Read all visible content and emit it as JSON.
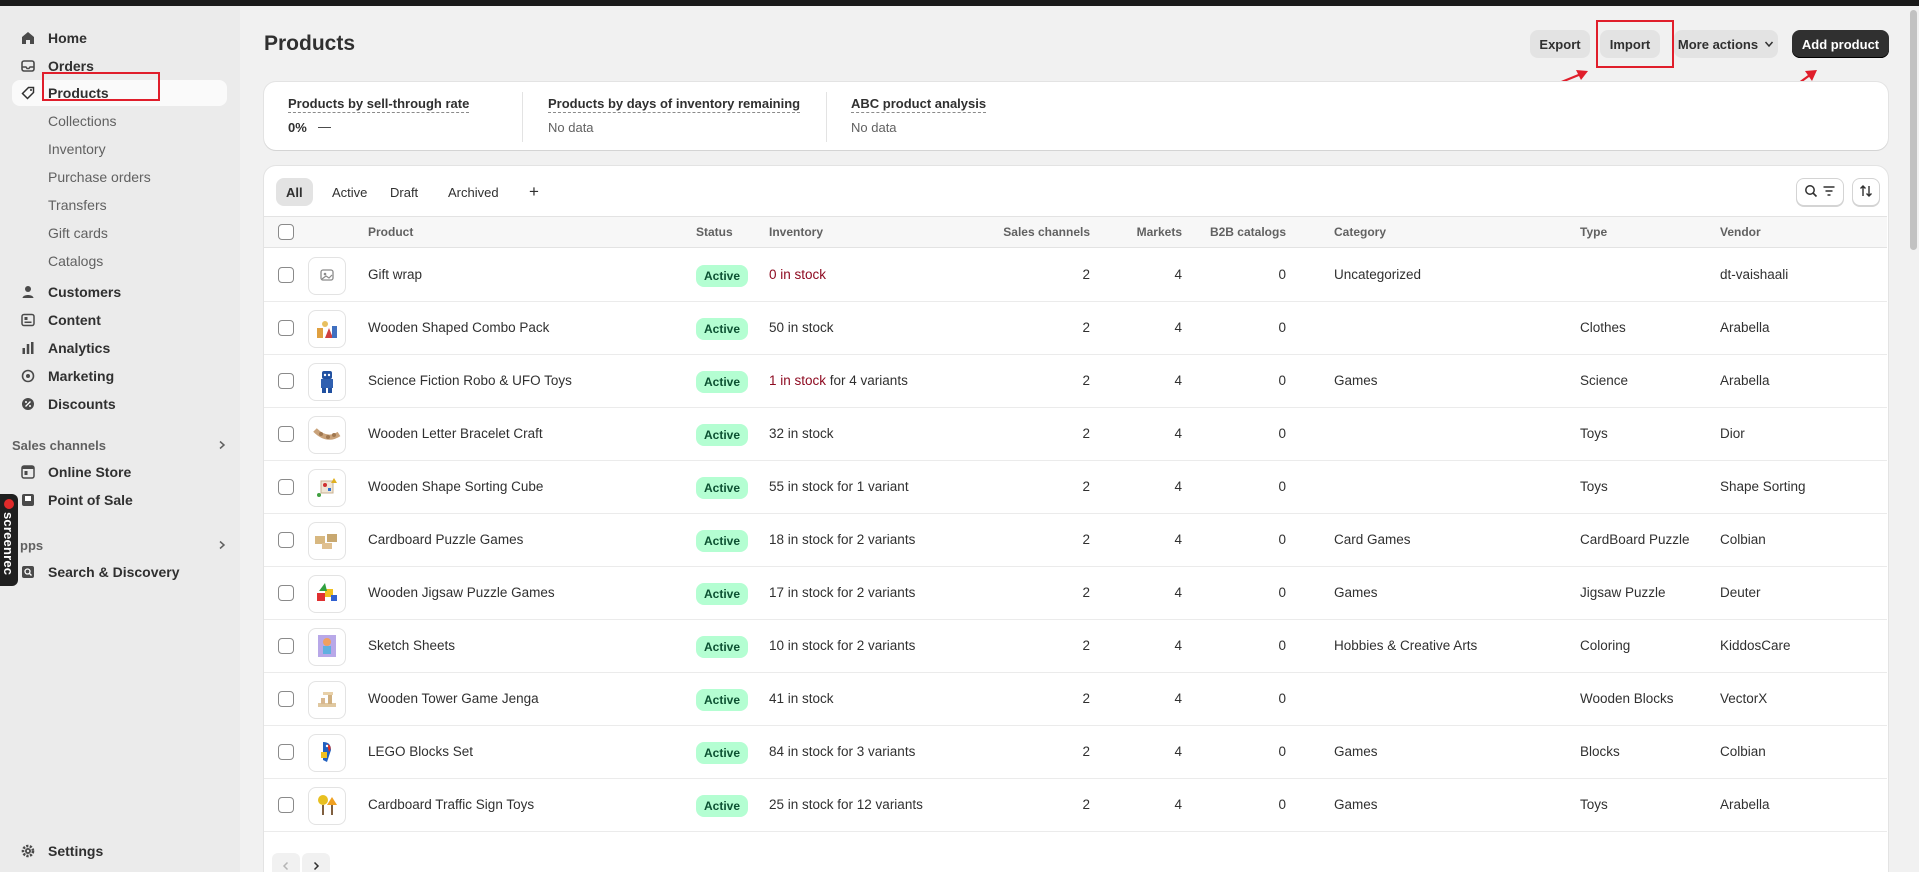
{
  "sidebar": {
    "nav": [
      {
        "label": "Home",
        "icon": "home-icon"
      },
      {
        "label": "Orders",
        "icon": "inbox-icon"
      },
      {
        "label": "Products",
        "icon": "tag-icon"
      }
    ],
    "product_sub": [
      "Collections",
      "Inventory",
      "Purchase orders",
      "Transfers",
      "Gift cards",
      "Catalogs"
    ],
    "nav2": [
      {
        "label": "Customers",
        "icon": "person-icon"
      },
      {
        "label": "Content",
        "icon": "content-icon"
      },
      {
        "label": "Analytics",
        "icon": "bar-chart-icon"
      },
      {
        "label": "Marketing",
        "icon": "target-icon"
      },
      {
        "label": "Discounts",
        "icon": "discount-icon"
      }
    ],
    "sales_channels_label": "Sales channels",
    "sales_channels": [
      {
        "label": "Online Store",
        "icon": "store-icon"
      },
      {
        "label": "Point of Sale",
        "icon": "pos-icon"
      }
    ],
    "apps_label": "pps",
    "apps": [
      {
        "label": "Search & Discovery",
        "icon": "search-discovery-icon"
      }
    ],
    "settings_label": "Settings",
    "screenrec_label": "screenrec"
  },
  "header": {
    "title": "Products",
    "export_label": "Export",
    "import_label": "Import",
    "more_actions_label": "More actions",
    "add_product_label": "Add product"
  },
  "stats": [
    {
      "title": "Products by sell-through rate",
      "value": "0%",
      "extra": "—"
    },
    {
      "title": "Products by days of inventory remaining",
      "value": "No data"
    },
    {
      "title": "ABC product analysis",
      "value": "No data"
    }
  ],
  "tabs": [
    "All",
    "Active",
    "Draft",
    "Archived"
  ],
  "add_tab": "+",
  "columns": [
    "Product",
    "Status",
    "Inventory",
    "Sales channels",
    "Markets",
    "B2B catalogs",
    "Category",
    "Type",
    "Vendor"
  ],
  "rows": [
    {
      "product": "Gift wrap",
      "status": "Active",
      "inv_red": "0 in stock",
      "inv_rest": "",
      "sales": "2",
      "markets": "4",
      "b2b": "0",
      "category": "Uncategorized",
      "type": "",
      "vendor": "dt-vaishaali",
      "thumb_icon": "placeholder-image-icon"
    },
    {
      "product": "Wooden Shaped Combo Pack",
      "status": "Active",
      "inv_red": "",
      "inv_rest": "50 in stock",
      "sales": "2",
      "markets": "4",
      "b2b": "0",
      "category": "",
      "type": "Clothes",
      "vendor": "Arabella",
      "thumb_icon": "wooden-toys-icon"
    },
    {
      "product": "Science Fiction Robo & UFO Toys",
      "status": "Active",
      "inv_red": "1 in stock",
      "inv_rest": " for 4 variants",
      "sales": "2",
      "markets": "4",
      "b2b": "0",
      "category": "Games",
      "type": "Science",
      "vendor": "Arabella",
      "thumb_icon": "robot-icon"
    },
    {
      "product": "Wooden Letter Bracelet Craft",
      "status": "Active",
      "inv_red": "",
      "inv_rest": "32 in stock",
      "sales": "2",
      "markets": "4",
      "b2b": "0",
      "category": "",
      "type": "Toys",
      "vendor": "Dior",
      "thumb_icon": "bracelet-icon"
    },
    {
      "product": "Wooden Shape Sorting Cube",
      "status": "Active",
      "inv_red": "",
      "inv_rest": "55 in stock for 1 variant",
      "sales": "2",
      "markets": "4",
      "b2b": "0",
      "category": "",
      "type": "Toys",
      "vendor": "Shape Sorting",
      "thumb_icon": "sorting-cube-icon"
    },
    {
      "product": "Cardboard Puzzle Games",
      "status": "Active",
      "inv_red": "",
      "inv_rest": "18 in stock for 2 variants",
      "sales": "2",
      "markets": "4",
      "b2b": "0",
      "category": "Card Games",
      "type": "CardBoard Puzzle",
      "vendor": "Colbian",
      "thumb_icon": "cardboard-puzzle-icon"
    },
    {
      "product": "Wooden Jigsaw Puzzle Games",
      "status": "Active",
      "inv_red": "",
      "inv_rest": "17 in stock for 2 variants",
      "sales": "2",
      "markets": "4",
      "b2b": "0",
      "category": "Games",
      "type": "Jigsaw Puzzle",
      "vendor": "Deuter",
      "thumb_icon": "jigsaw-icon"
    },
    {
      "product": "Sketch Sheets",
      "status": "Active",
      "inv_red": "",
      "inv_rest": "10 in stock for 2 variants",
      "sales": "2",
      "markets": "4",
      "b2b": "0",
      "category": "Hobbies & Creative Arts",
      "type": "Coloring",
      "vendor": "KiddosCare",
      "thumb_icon": "sketch-sheet-icon"
    },
    {
      "product": "Wooden Tower Game Jenga",
      "status": "Active",
      "inv_red": "",
      "inv_rest": "41 in stock",
      "sales": "2",
      "markets": "4",
      "b2b": "0",
      "category": "",
      "type": "Wooden Blocks",
      "vendor": "VectorX",
      "thumb_icon": "jenga-icon"
    },
    {
      "product": "LEGO Blocks Set",
      "status": "Active",
      "inv_red": "",
      "inv_rest": "84 in stock for 3 variants",
      "sales": "2",
      "markets": "4",
      "b2b": "0",
      "category": "Games",
      "type": "Blocks",
      "vendor": "Colbian",
      "thumb_icon": "parrot-lego-icon"
    },
    {
      "product": "Cardboard Traffic Sign Toys",
      "status": "Active",
      "inv_red": "",
      "inv_rest": "25 in stock for 12 variants",
      "sales": "2",
      "markets": "4",
      "b2b": "0",
      "category": "Games",
      "type": "Toys",
      "vendor": "Arabella",
      "thumb_icon": "traffic-sign-icon"
    }
  ],
  "colors": {
    "accent": "#303030",
    "active_badge": "#b4fed2",
    "highlight": "#e01e2b",
    "low_stock": "#8e0b21"
  }
}
